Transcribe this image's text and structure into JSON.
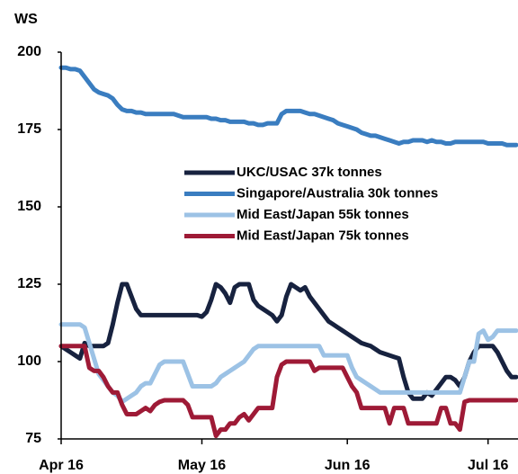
{
  "chart_data": {
    "type": "line",
    "y_label": "WS",
    "categories": [
      "Apr 16",
      null,
      null,
      null,
      null,
      null,
      null,
      null,
      null,
      null,
      null,
      null,
      null,
      null,
      null,
      null,
      null,
      null,
      null,
      null,
      null,
      null,
      null,
      null,
      null,
      null,
      null,
      null,
      null,
      null,
      "May 16",
      null,
      null,
      null,
      null,
      null,
      null,
      null,
      null,
      null,
      null,
      null,
      null,
      null,
      null,
      null,
      null,
      null,
      null,
      null,
      null,
      null,
      null,
      null,
      null,
      null,
      null,
      null,
      null,
      null,
      null,
      "Jun 16",
      null,
      null,
      null,
      null,
      null,
      null,
      null,
      null,
      null,
      null,
      null,
      null,
      null,
      null,
      null,
      null,
      null,
      null,
      null,
      null,
      null,
      null,
      null,
      null,
      null,
      null,
      null,
      null,
      null,
      "Jul 16",
      null,
      null,
      null,
      null,
      null,
      null
    ],
    "ylim": [
      75,
      200
    ],
    "yticks": [
      75,
      100,
      125,
      150,
      175,
      200
    ],
    "grid": false,
    "legend": "center",
    "series": [
      {
        "name": "UKC/USAC 37k tonnes",
        "color": "#17223f",
        "values": [
          105,
          104,
          103,
          102,
          101,
          106,
          105,
          105,
          105,
          105,
          106,
          112,
          119,
          125,
          125,
          121,
          117,
          115,
          115,
          115,
          115,
          115,
          115,
          115,
          115,
          115,
          115,
          115,
          115,
          115,
          114.5,
          116,
          120,
          125,
          124,
          122,
          119,
          124,
          125,
          125,
          125,
          120,
          118,
          117,
          116,
          115,
          113,
          115,
          121,
          125,
          124,
          123,
          124,
          121,
          119,
          117,
          115,
          113,
          112,
          111,
          110,
          109,
          108,
          107,
          106,
          105.5,
          105,
          104,
          103,
          102.5,
          102,
          101.5,
          101,
          95,
          90,
          88,
          88,
          88,
          90,
          89,
          91,
          93,
          95,
          95,
          94,
          92,
          95,
          100,
          103,
          105,
          105,
          105,
          105,
          103,
          100,
          97,
          95,
          95
        ]
      },
      {
        "name": "Singapore/Australia 30k tonnes",
        "color": "#3a7dc0",
        "values": [
          195,
          195,
          194.5,
          194.5,
          194,
          192,
          190,
          188,
          187,
          186.5,
          186,
          185,
          183,
          181.5,
          181,
          181,
          180.5,
          180.5,
          180,
          180,
          180,
          180,
          180,
          180,
          180,
          179.5,
          179,
          179,
          179,
          179,
          179,
          179,
          178.5,
          178.5,
          178,
          178,
          177.5,
          177.5,
          177.5,
          177.5,
          177,
          177,
          176.5,
          176.5,
          177,
          177,
          177,
          180,
          181,
          181,
          181,
          181,
          180.5,
          180,
          180,
          179.5,
          179,
          178.5,
          178,
          177,
          176.5,
          176,
          175.5,
          175,
          174,
          173.5,
          173,
          173,
          172.5,
          172,
          171.5,
          171,
          170.5,
          171,
          171,
          171.5,
          171.5,
          171.5,
          171,
          171.5,
          171,
          171,
          170.5,
          170.5,
          171,
          171,
          171,
          171,
          171,
          171,
          171,
          170.5,
          170.5,
          170.5,
          170.5,
          170,
          170,
          170
        ]
      },
      {
        "name": "Mid East/Japan 55k tonnes",
        "color": "#9cc2e5",
        "values": [
          112,
          112,
          112,
          112,
          112,
          111,
          106,
          101,
          96,
          94,
          92,
          90,
          89,
          87,
          88,
          89,
          90,
          92,
          93,
          93,
          96,
          99,
          100,
          100,
          100,
          100,
          100,
          96,
          92,
          92,
          92,
          92,
          92,
          93,
          95,
          96,
          97,
          98,
          99,
          100,
          102,
          104,
          105,
          105,
          105,
          105,
          105,
          105,
          105,
          105,
          105,
          105,
          105,
          105,
          105,
          105,
          102,
          102,
          102,
          102,
          102,
          102,
          98,
          95,
          94,
          93,
          92,
          91,
          90,
          90,
          90,
          90,
          90,
          90,
          90,
          90,
          90,
          90,
          90,
          90,
          90,
          90,
          90,
          90,
          90,
          90,
          95,
          100,
          100,
          109,
          110,
          107,
          108,
          110,
          110,
          110,
          110,
          110
        ]
      },
      {
        "name": "Mid East/Japan 75k tonnes",
        "color": "#9e1a36",
        "values": [
          105,
          105,
          105,
          105,
          105,
          105,
          98,
          97,
          97,
          95,
          92,
          90,
          90,
          86,
          83,
          83,
          83,
          84,
          85,
          84,
          86,
          87,
          87.5,
          87.5,
          87.5,
          87.5,
          87.5,
          86,
          82,
          82,
          82,
          82,
          82,
          76,
          78,
          78,
          80,
          80,
          82,
          83,
          81,
          83,
          85,
          85,
          85,
          85,
          95,
          99,
          100,
          100,
          100,
          100,
          100,
          100,
          97,
          98,
          98,
          98,
          98,
          98,
          98,
          95,
          92,
          90,
          85,
          85,
          85,
          85,
          85,
          85,
          80,
          85,
          85,
          85,
          80,
          80,
          80,
          80,
          80,
          80,
          80,
          85,
          85,
          80,
          80,
          78,
          87,
          87.5,
          87.5,
          87.5,
          87.5,
          87.5,
          87.5,
          87.5,
          87.5,
          87.5,
          87.5,
          87.5
        ]
      }
    ]
  }
}
